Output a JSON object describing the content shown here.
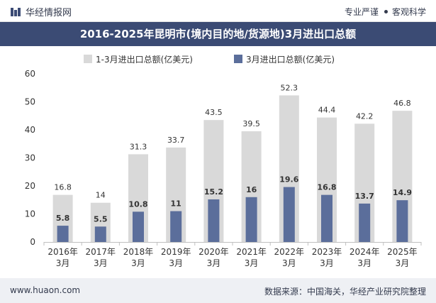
{
  "header": {
    "brand": "华经情报网",
    "slogan_left": "专业严谨",
    "slogan_right": "客观科学"
  },
  "footer": {
    "website": "www.huaon.com",
    "source": "数据来源：中国海关，华经产业研究院整理"
  },
  "colors": {
    "title_bg": "#3b4b74",
    "series_total": "#d9d9d9",
    "series_march": "#5b6e9b"
  },
  "chart_data": {
    "type": "bar",
    "title": "2016-2025年昆明市(境内目的地/货源地)3月进出口总额",
    "categories": [
      "2016年3月",
      "2017年3月",
      "2018年3月",
      "2019年3月",
      "2020年3月",
      "2021年3月",
      "2022年3月",
      "2023年3月",
      "2024年3月",
      "2025年3月"
    ],
    "category_lines": [
      [
        "2016年",
        "3月"
      ],
      [
        "2017年",
        "3月"
      ],
      [
        "2018年",
        "3月"
      ],
      [
        "2019年",
        "3月"
      ],
      [
        "2020年",
        "3月"
      ],
      [
        "2021年",
        "3月"
      ],
      [
        "2022年",
        "3月"
      ],
      [
        "2023年",
        "3月"
      ],
      [
        "2024年",
        "3月"
      ],
      [
        "2025年",
        "3月"
      ]
    ],
    "series": [
      {
        "name": "1-3月进出口总额(亿美元)",
        "color": "#d9d9d9",
        "values": [
          16.8,
          14,
          31.3,
          33.7,
          43.5,
          39.5,
          52.3,
          44.4,
          42.2,
          46.8
        ]
      },
      {
        "name": "3月进出口总额(亿美元)",
        "color": "#5b6e9b",
        "values": [
          5.8,
          5.5,
          10.8,
          11,
          15.2,
          16,
          19.6,
          16.8,
          13.7,
          14.9
        ]
      }
    ],
    "ylim": [
      0,
      60
    ],
    "yticks": [
      0,
      10,
      20,
      30,
      40,
      50,
      60
    ],
    "legend_position": "top-center",
    "grid": false
  }
}
